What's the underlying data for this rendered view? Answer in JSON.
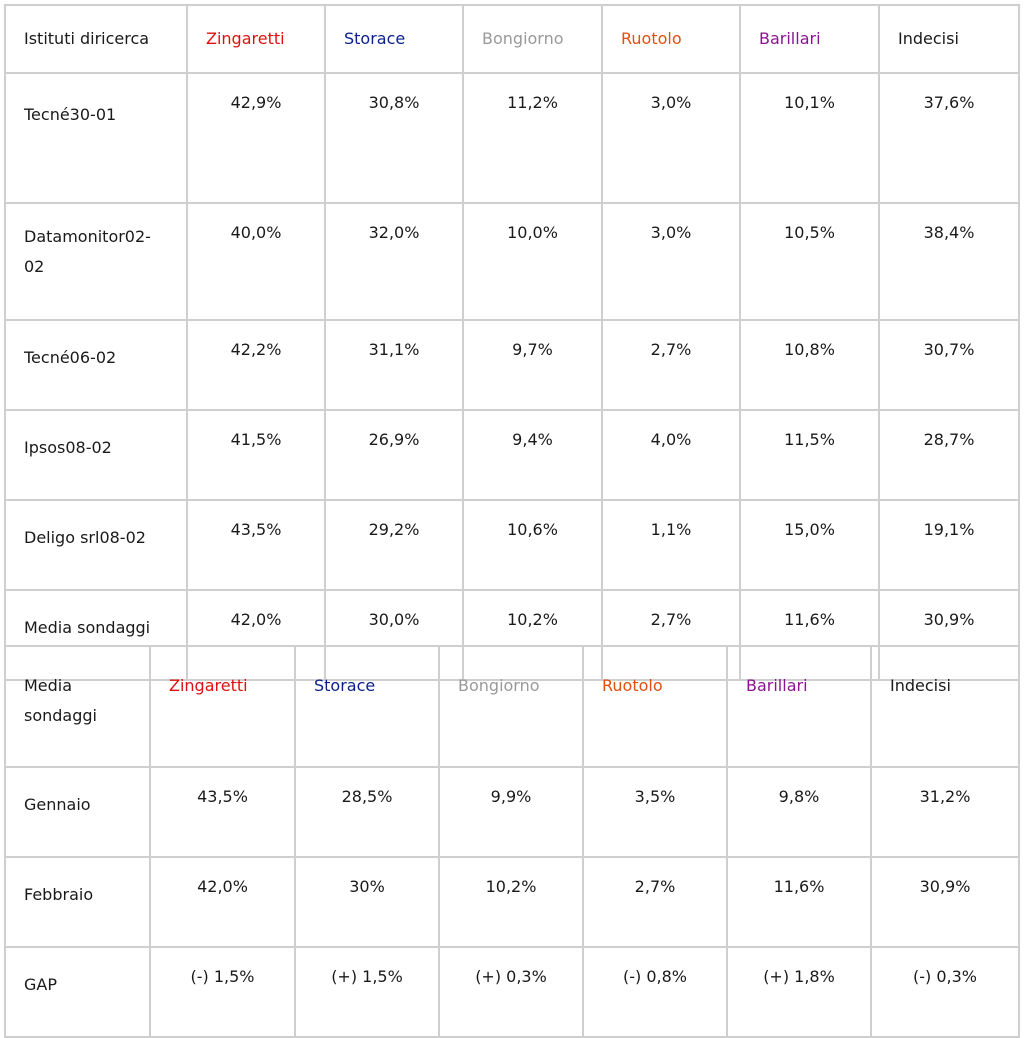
{
  "colors": {
    "zingaretti": "#e01010",
    "storace": "#0b1f8a",
    "bongiorno": "#999999",
    "ruotolo": "#e05010",
    "barillari": "#8a1590",
    "indecisi": "#1a1a1a"
  },
  "table1": {
    "headers": [
      "Istituti diricerca",
      "Zingaretti",
      "Storace",
      "Bongiorno",
      "Ruotolo",
      "Barillari",
      "Indecisi"
    ],
    "rows": [
      {
        "label": "Tecné30-01",
        "values": [
          "42,9%",
          "30,8%",
          "11,2%",
          "3,0%",
          "10,1%",
          "37,6%"
        ]
      },
      {
        "label": "Datamonitor02-02",
        "values": [
          "40,0%",
          "32,0%",
          "10,0%",
          "3,0%",
          "10,5%",
          "38,4%"
        ]
      },
      {
        "label": "Tecné06-02",
        "values": [
          "42,2%",
          "31,1%",
          "9,7%",
          "2,7%",
          "10,8%",
          "30,7%"
        ]
      },
      {
        "label": "Ipsos08-02",
        "values": [
          "41,5%",
          "26,9%",
          "9,4%",
          "4,0%",
          "11,5%",
          "28,7%"
        ]
      },
      {
        "label": "Deligo srl08-02",
        "values": [
          "43,5%",
          "29,2%",
          "10,6%",
          "1,1%",
          "15,0%",
          "19,1%"
        ]
      },
      {
        "label": "Media sondaggi",
        "values": [
          "42,0%",
          "30,0%",
          "10,2%",
          "2,7%",
          "11,6%",
          "30,9%"
        ]
      }
    ]
  },
  "table2": {
    "headers": [
      "Media sondaggi",
      "Zingaretti",
      "Storace",
      "Bongiorno",
      "Ruotolo",
      "Barillari",
      "Indecisi"
    ],
    "rows": [
      {
        "label": "Gennaio",
        "values": [
          "43,5%",
          "28,5%",
          "9,9%",
          "3,5%",
          "9,8%",
          "31,2%"
        ]
      },
      {
        "label": "Febbraio",
        "values": [
          "42,0%",
          "30%",
          "10,2%",
          "2,7%",
          "11,6%",
          "30,9%"
        ]
      },
      {
        "label": "GAP",
        "values": [
          "(-) 1,5%",
          "(+) 1,5%",
          "(+) 0,3%",
          "(-) 0,8%",
          "(+) 1,8%",
          "(-) 0,3%"
        ]
      }
    ]
  }
}
